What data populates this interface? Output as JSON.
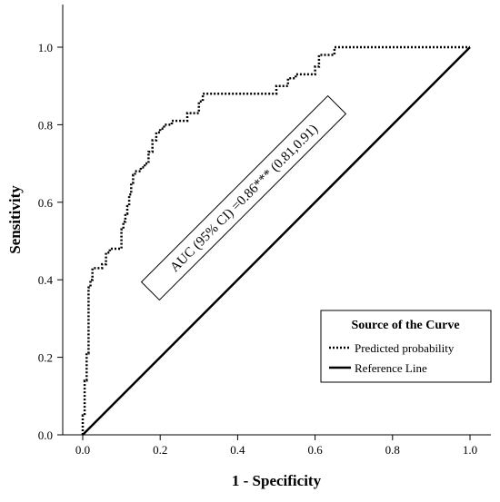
{
  "chart_data": {
    "type": "line",
    "xlabel": "1 - Specificity",
    "ylabel": "Sensitivity",
    "xlim": [
      0,
      1
    ],
    "ylim": [
      0,
      1
    ],
    "x_ticks": [
      "0.0",
      "0.2",
      "0.4",
      "0.6",
      "0.8",
      "1.0"
    ],
    "y_ticks": [
      "0.0",
      "0.2",
      "0.4",
      "0.6",
      "0.8",
      "1.0"
    ],
    "grid": false,
    "legend": {
      "title": "Source of the Curve",
      "placement": "bottom-right",
      "entries": [
        "Predicted probability",
        "Reference Line"
      ]
    },
    "annotation": "AUC (95% CI) =0.86*** (0.81,0.91)",
    "series": [
      {
        "name": "Predicted probability",
        "style": "dotted",
        "color": "#000000",
        "points": [
          [
            0,
            0
          ],
          [
            0,
            0.05
          ],
          [
            0.005,
            0.05
          ],
          [
            0.005,
            0.14
          ],
          [
            0.01,
            0.14
          ],
          [
            0.01,
            0.21
          ],
          [
            0.015,
            0.21
          ],
          [
            0.015,
            0.23
          ],
          [
            0.015,
            0.38
          ],
          [
            0.02,
            0.38
          ],
          [
            0.02,
            0.4
          ],
          [
            0.025,
            0.4
          ],
          [
            0.025,
            0.43
          ],
          [
            0.05,
            0.43
          ],
          [
            0.05,
            0.44
          ],
          [
            0.06,
            0.44
          ],
          [
            0.06,
            0.47
          ],
          [
            0.07,
            0.47
          ],
          [
            0.07,
            0.48
          ],
          [
            0.1,
            0.48
          ],
          [
            0.1,
            0.53
          ],
          [
            0.105,
            0.53
          ],
          [
            0.105,
            0.55
          ],
          [
            0.11,
            0.55
          ],
          [
            0.11,
            0.57
          ],
          [
            0.115,
            0.57
          ],
          [
            0.115,
            0.59
          ],
          [
            0.12,
            0.59
          ],
          [
            0.12,
            0.62
          ],
          [
            0.125,
            0.62
          ],
          [
            0.125,
            0.65
          ],
          [
            0.13,
            0.65
          ],
          [
            0.13,
            0.67
          ],
          [
            0.135,
            0.67
          ],
          [
            0.135,
            0.68
          ],
          [
            0.15,
            0.68
          ],
          [
            0.15,
            0.69
          ],
          [
            0.16,
            0.69
          ],
          [
            0.16,
            0.7
          ],
          [
            0.17,
            0.7
          ],
          [
            0.17,
            0.73
          ],
          [
            0.18,
            0.73
          ],
          [
            0.18,
            0.76
          ],
          [
            0.19,
            0.76
          ],
          [
            0.19,
            0.78
          ],
          [
            0.2,
            0.78
          ],
          [
            0.2,
            0.79
          ],
          [
            0.21,
            0.79
          ],
          [
            0.21,
            0.8
          ],
          [
            0.23,
            0.8
          ],
          [
            0.23,
            0.81
          ],
          [
            0.27,
            0.81
          ],
          [
            0.27,
            0.83
          ],
          [
            0.3,
            0.83
          ],
          [
            0.3,
            0.86
          ],
          [
            0.31,
            0.86
          ],
          [
            0.31,
            0.88
          ],
          [
            0.5,
            0.88
          ],
          [
            0.5,
            0.9
          ],
          [
            0.53,
            0.9
          ],
          [
            0.53,
            0.92
          ],
          [
            0.55,
            0.92
          ],
          [
            0.55,
            0.93
          ],
          [
            0.6,
            0.93
          ],
          [
            0.6,
            0.95
          ],
          [
            0.61,
            0.95
          ],
          [
            0.61,
            0.98
          ],
          [
            0.65,
            0.98
          ],
          [
            0.65,
            1.0
          ],
          [
            1.0,
            1.0
          ]
        ]
      },
      {
        "name": "Reference Line",
        "style": "solid",
        "color": "#000000",
        "points": [
          [
            0,
            0
          ],
          [
            1,
            1
          ]
        ]
      }
    ]
  }
}
